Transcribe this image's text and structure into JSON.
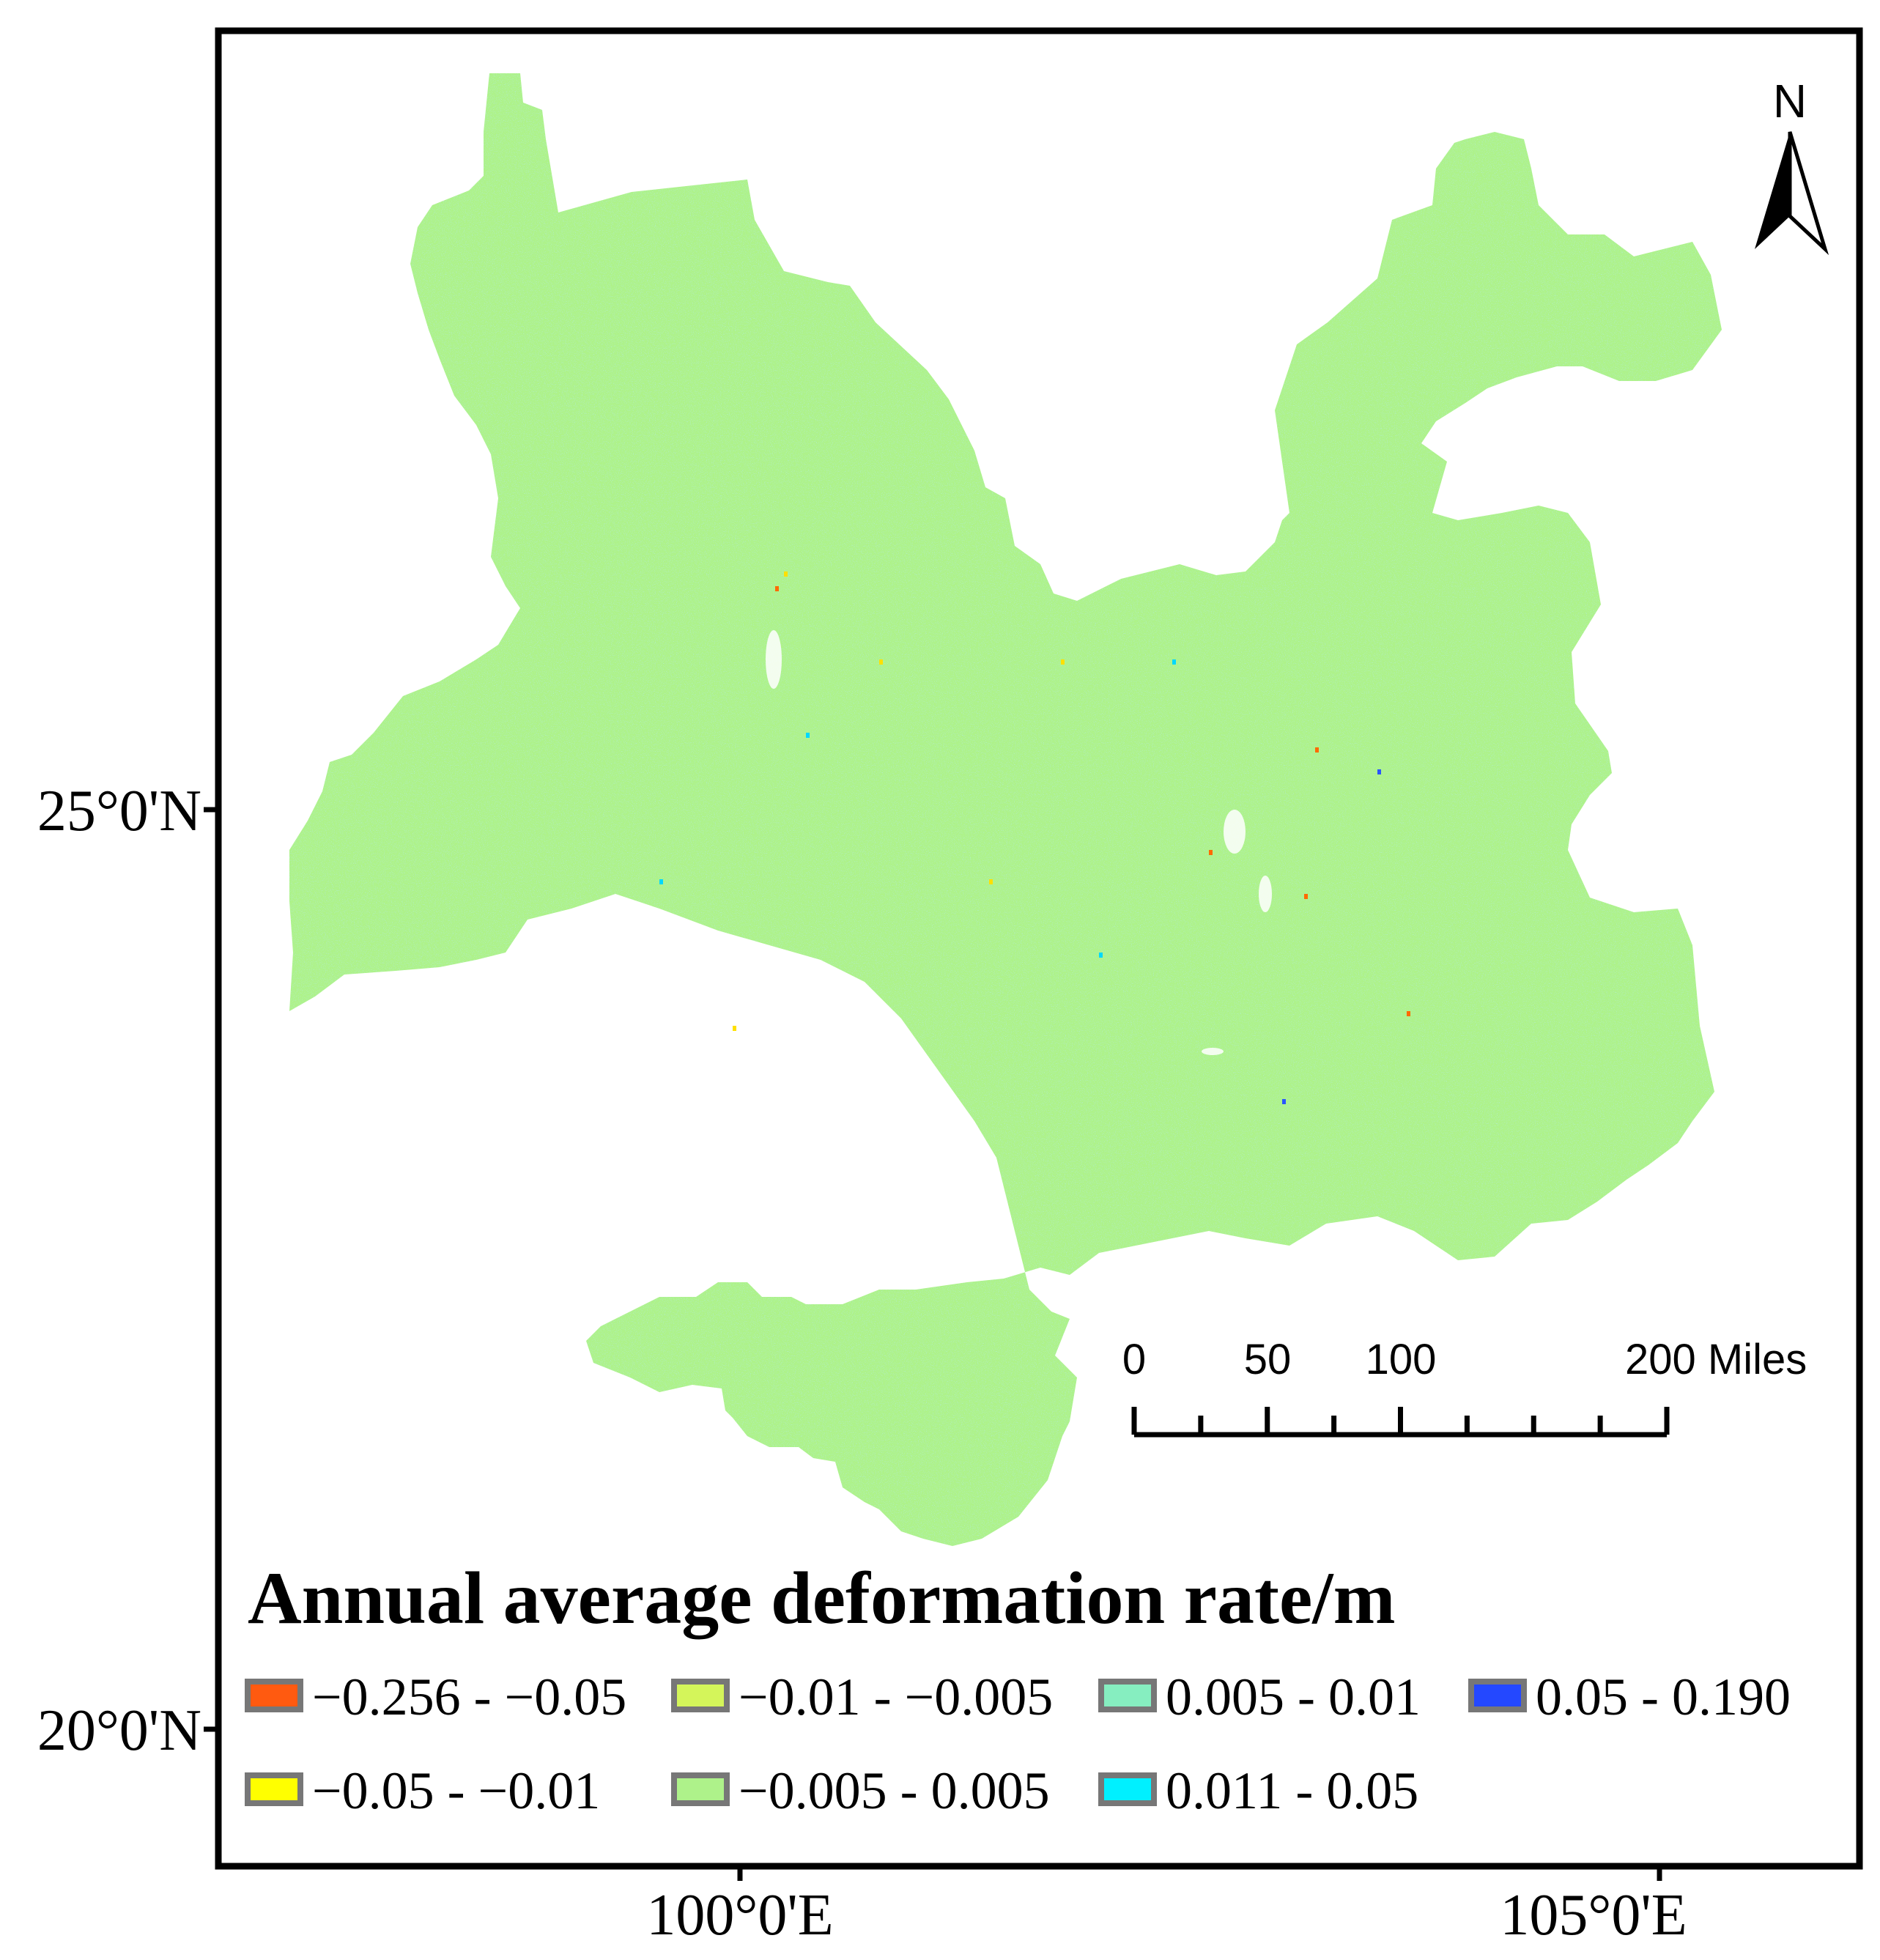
{
  "map": {
    "colors": {
      "frame": "#000000",
      "background": "#ffffff",
      "region_fill": "#aef28a",
      "noise_speckle": "#7fe0c0",
      "legend_swatch_border": "#777777"
    },
    "axes": {
      "y_ticks": [
        {
          "label": "25°0'N"
        },
        {
          "label": "20°0'N"
        }
      ],
      "x_ticks": [
        {
          "label": "100°0'E"
        },
        {
          "label": "105°0'E"
        }
      ]
    },
    "north_arrow": {
      "label": "N",
      "icon": "north-arrow-icon"
    },
    "scale_bar": {
      "labels": [
        "0",
        "50",
        "100",
        "200 Miles"
      ]
    },
    "legend": {
      "title": "Annual average deformation rate/m",
      "items": [
        {
          "label": "−0.256 - −0.05",
          "color": "#ff5a10"
        },
        {
          "label": "−0.01 - −0.005",
          "color": "#d4f55a"
        },
        {
          "label": "0.005 - 0.01",
          "color": "#86eec0"
        },
        {
          "label": "0.05 - 0.190",
          "color": "#2448ff"
        },
        {
          "label": "−0.05 - −0.01",
          "color": "#ffff00"
        },
        {
          "label": "−0.005 - 0.005",
          "color": "#aef28a"
        },
        {
          "label": "0.011 - 0.05",
          "color": "#00f0ff"
        }
      ]
    },
    "anomaly_colors": [
      "#ff6a00",
      "#ffe000",
      "#2a55ff",
      "#00d8ff",
      "#ffffff"
    ]
  }
}
